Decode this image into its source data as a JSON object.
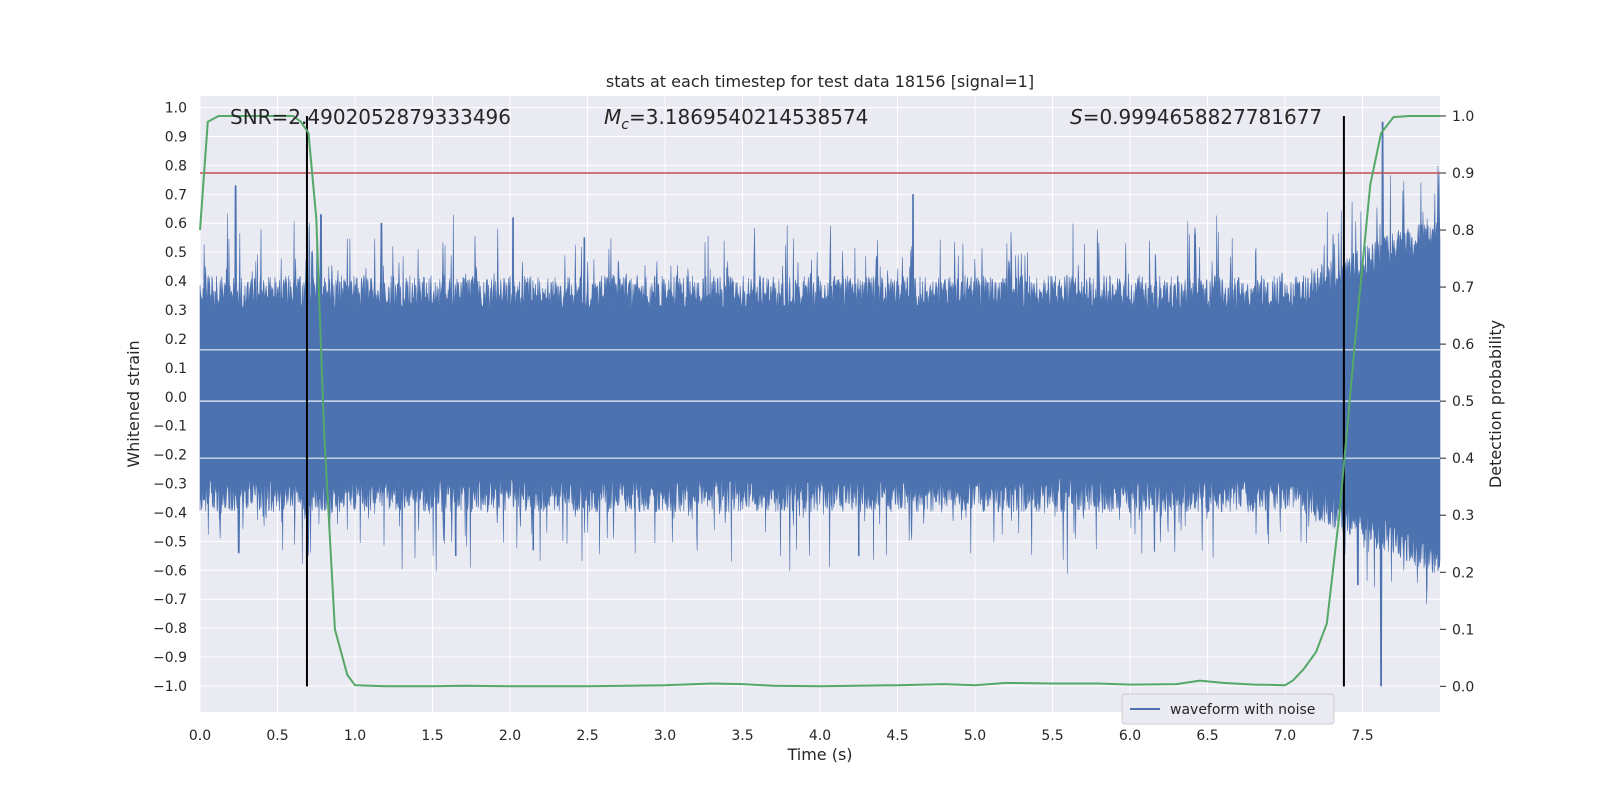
{
  "chart_data": {
    "type": "line",
    "title": "stats at each timestep for test data 18156 [signal=1]",
    "xlabel": "Time (s)",
    "ylabel_left": "Whitened strain",
    "ylabel_right": "Detection probability",
    "xlim": [
      0.0,
      8.0
    ],
    "ylim_left": [
      -1.09,
      1.04
    ],
    "ylim_right": [
      -0.045,
      1.035
    ],
    "x_ticks": [
      "0.0",
      "0.5",
      "1.0",
      "1.5",
      "2.0",
      "2.5",
      "3.0",
      "3.5",
      "4.0",
      "4.5",
      "5.0",
      "5.5",
      "6.0",
      "6.5",
      "7.0",
      "7.5"
    ],
    "y_left_ticks": [
      "1.0",
      "0.9",
      "0.8",
      "0.7",
      "0.6",
      "0.5",
      "0.4",
      "0.3",
      "0.2",
      "0.1",
      "0.0",
      "−0.1",
      "−0.2",
      "−0.3",
      "−0.4",
      "−0.5",
      "−0.6",
      "−0.7",
      "−0.8",
      "−0.9",
      "−1.0"
    ],
    "y_right_ticks": [
      "1.0",
      "0.9",
      "0.8",
      "0.7",
      "0.6",
      "0.5",
      "0.4",
      "0.3",
      "0.2",
      "0.1",
      "0.0"
    ],
    "grid": true,
    "legend_position": "lower-right",
    "annotations": {
      "snr": "SNR=2.4902052879333496",
      "mc_symbol": "M",
      "mc_sub": "c",
      "mc_value": "=3.1869540214538574",
      "s_symbol": "S",
      "s_value": "=0.9994658827781677"
    },
    "threshold": {
      "value": 0.9,
      "axis": "right",
      "color": "#c44e52"
    },
    "boundaries": {
      "x": [
        0.69,
        7.38
      ],
      "color": "#000000"
    },
    "series": [
      {
        "name": "waveform with noise",
        "kind": "noise-band",
        "axis": "left",
        "color": "#4c72b0",
        "x_range": [
          0.0,
          8.0
        ],
        "core_range": [
          -0.28,
          0.3
        ],
        "spike_peaks": [
          {
            "x": 0.23,
            "y": 0.73
          },
          {
            "x": 0.78,
            "y": 0.63
          },
          {
            "x": 1.17,
            "y": 0.6
          },
          {
            "x": 2.02,
            "y": 0.62
          },
          {
            "x": 2.48,
            "y": 0.55
          },
          {
            "x": 4.6,
            "y": 0.7
          },
          {
            "x": 6.42,
            "y": 0.56
          },
          {
            "x": 7.63,
            "y": 0.95
          },
          {
            "x": 7.62,
            "y": -1.0
          },
          {
            "x": 0.25,
            "y": -0.54
          },
          {
            "x": 1.65,
            "y": -0.55
          },
          {
            "x": 2.15,
            "y": -0.53
          },
          {
            "x": 4.25,
            "y": -0.55
          },
          {
            "x": 7.47,
            "y": -0.65
          }
        ]
      },
      {
        "name": "",
        "kind": "probability",
        "axis": "right",
        "color": "#55a868",
        "x": [
          0.0,
          0.05,
          0.12,
          0.2,
          0.3,
          0.4,
          0.5,
          0.55,
          0.6,
          0.65,
          0.7,
          0.75,
          0.8,
          0.87,
          0.95,
          1.0,
          1.2,
          1.5,
          1.7,
          2.0,
          2.3,
          2.5,
          3.0,
          3.3,
          3.5,
          3.7,
          4.0,
          4.5,
          4.8,
          5.0,
          5.2,
          5.5,
          5.8,
          6.0,
          6.3,
          6.45,
          6.6,
          6.8,
          7.0,
          7.05,
          7.12,
          7.2,
          7.27,
          7.35,
          7.45,
          7.55,
          7.62,
          7.7,
          7.8,
          8.0
        ],
        "y": [
          0.8,
          0.99,
          1.0,
          1.0,
          1.0,
          1.0,
          1.0,
          1.0,
          1.0,
          0.99,
          0.97,
          0.82,
          0.45,
          0.1,
          0.02,
          0.002,
          0.0,
          0.0,
          0.001,
          0.0,
          0.0,
          0.0,
          0.002,
          0.005,
          0.004,
          0.001,
          0.0,
          0.002,
          0.004,
          0.002,
          0.006,
          0.005,
          0.005,
          0.003,
          0.004,
          0.01,
          0.006,
          0.003,
          0.002,
          0.01,
          0.03,
          0.06,
          0.11,
          0.3,
          0.6,
          0.88,
          0.97,
          0.998,
          1.0,
          1.0
        ]
      }
    ]
  }
}
